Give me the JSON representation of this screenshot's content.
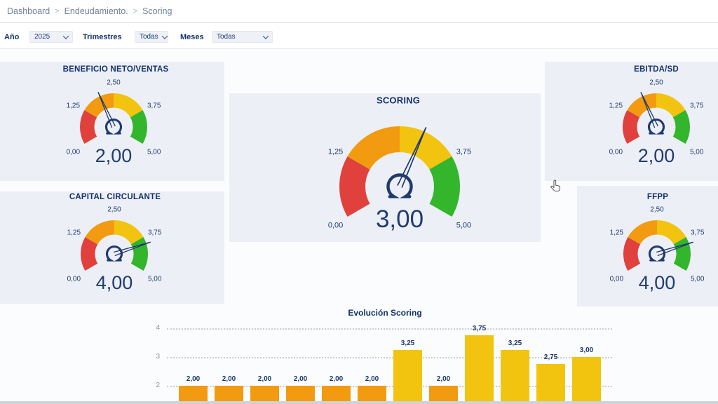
{
  "breadcrumb": {
    "separator": ">",
    "items": [
      "Dashboard",
      "Endeudamiento.",
      "Scoring"
    ]
  },
  "filters": {
    "fields": [
      {
        "label": "Año",
        "value": "2025"
      },
      {
        "label": "Trimestres",
        "value": "Todas"
      },
      {
        "label": "Meses",
        "value": "Todas"
      }
    ]
  },
  "colors": {
    "red": "#E0413D",
    "orange": "#F29B10",
    "yellow": "#F2C40F",
    "green": "#33B52C",
    "needle_navy": "#1E3A6E",
    "value_navy": "#1F3C72",
    "title_navy": "#12316B",
    "card_bg": "#EDEFF6",
    "grid_dot": "#C9CCD3",
    "axis_gray": "#8F939A",
    "bar_orange": "#F29B10",
    "bar_yellow": "#F2C40F"
  },
  "chart_data": [
    {
      "type": "gauge",
      "title": "BENEFICIO NETO/VENTAS",
      "value": 2.0,
      "display": "2,00",
      "min": 0,
      "max": 5,
      "ticks": [
        0,
        1.25,
        2.5,
        3.75,
        5
      ],
      "tick_labels": [
        "0,00",
        "1,25",
        "2,50",
        "3,75",
        "5,00"
      ],
      "segments": [
        [
          0,
          1.25,
          "red"
        ],
        [
          1.25,
          2.5,
          "orange"
        ],
        [
          2.5,
          3.75,
          "yellow"
        ],
        [
          3.75,
          5,
          "green"
        ]
      ]
    },
    {
      "type": "gauge",
      "title": "SCORING",
      "value": 3.0,
      "display": "3,00",
      "min": 0,
      "max": 5,
      "ticks": [
        0,
        1.25,
        2.5,
        3.75,
        5
      ],
      "tick_labels": [
        "0,00",
        "1,25",
        "2,50",
        "3,75",
        "5,00"
      ],
      "segments": [
        [
          0,
          1.25,
          "red"
        ],
        [
          1.25,
          2.5,
          "orange"
        ],
        [
          2.5,
          3.75,
          "yellow"
        ],
        [
          3.75,
          5,
          "green"
        ]
      ]
    },
    {
      "type": "gauge",
      "title": "EBITDA/SD",
      "value": 2.0,
      "display": "2,00",
      "min": 0,
      "max": 5,
      "ticks": [
        0,
        1.25,
        2.5,
        3.75,
        5
      ],
      "tick_labels": [
        "0,00",
        "1,25",
        "2,50",
        "3,75",
        "5,00"
      ],
      "segments": [
        [
          0,
          1.25,
          "red"
        ],
        [
          1.25,
          2.5,
          "orange"
        ],
        [
          2.5,
          3.75,
          "yellow"
        ],
        [
          3.75,
          5,
          "green"
        ]
      ]
    },
    {
      "type": "gauge",
      "title": "CAPITAL CIRCULANTE",
      "value": 4.0,
      "display": "4,00",
      "min": 0,
      "max": 5,
      "ticks": [
        0,
        1.25,
        2.5,
        3.75,
        5
      ],
      "tick_labels": [
        "0,00",
        "1,25",
        "2,50",
        "3,75",
        "5,00"
      ],
      "segments": [
        [
          0,
          1.25,
          "red"
        ],
        [
          1.25,
          2.5,
          "orange"
        ],
        [
          2.5,
          3.75,
          "yellow"
        ],
        [
          3.75,
          5,
          "green"
        ]
      ]
    },
    {
      "type": "gauge",
      "title": "FFPP",
      "value": 4.0,
      "display": "4,00",
      "min": 0,
      "max": 5,
      "ticks": [
        0,
        1.25,
        2.5,
        3.75,
        5
      ],
      "tick_labels": [
        "0,00",
        "1,25",
        "2,50",
        "3,75",
        "5,00"
      ],
      "segments": [
        [
          0,
          1.25,
          "red"
        ],
        [
          1.25,
          2.5,
          "orange"
        ],
        [
          2.5,
          3.75,
          "yellow"
        ],
        [
          3.75,
          5,
          "green"
        ]
      ]
    },
    {
      "type": "bar",
      "title": "Evolución Scoring",
      "values": [
        2,
        2,
        2,
        2,
        2,
        2,
        3.25,
        2,
        3.75,
        3.25,
        2.75,
        3
      ],
      "labels": [
        "2,00",
        "2,00",
        "2,00",
        "2,00",
        "2,00",
        "2,00",
        "3,25",
        "2,00",
        "3,75",
        "3,25",
        "2,75",
        "3,00"
      ],
      "yticks": [
        4,
        3,
        2
      ],
      "ylim_visible": [
        2,
        4
      ],
      "grid": "dotted-horizontal",
      "x_axis_labels_visible": false,
      "legend": "none"
    }
  ]
}
